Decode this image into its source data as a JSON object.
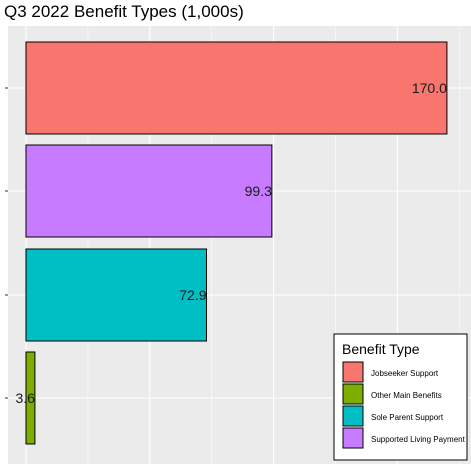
{
  "chart_data": {
    "type": "bar",
    "orientation": "horizontal",
    "title": "Q3 2022 Benefit Types (1,000s)",
    "xlabel": "",
    "ylabel": "",
    "xlim": [
      0,
      182
    ],
    "grid": true,
    "legend_position": "bottom-right",
    "legend_title": "Benefit Type",
    "categories": [
      "Jobseeker Support",
      "Supported Living Payment",
      "Sole Parent Support",
      "Other Main Benefits"
    ],
    "values": [
      170.0,
      99.3,
      72.9,
      3.6
    ],
    "data_labels": [
      "170.0",
      "99.3",
      "72.9",
      "3.6"
    ],
    "colors": [
      "#F8766D",
      "#C77CFF",
      "#00BFC4",
      "#7CAE00"
    ],
    "legend": [
      {
        "name": "Jobseeker Support",
        "color": "#F8766D"
      },
      {
        "name": "Other Main Benefits",
        "color": "#7CAE00"
      },
      {
        "name": "Sole Parent Support",
        "color": "#00BFC4"
      },
      {
        "name": "Supported Living Payment",
        "color": "#C77CFF"
      }
    ]
  }
}
